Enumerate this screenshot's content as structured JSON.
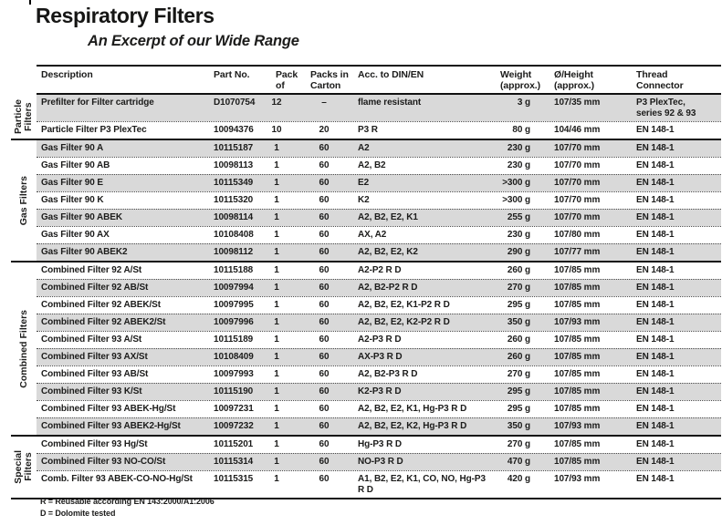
{
  "title": "Respiratory Filters",
  "subtitle": "An Excerpt of our Wide Range",
  "table": {
    "headers": [
      "Description",
      "Part No.",
      "Pack\nof",
      "Packs in\nCarton",
      "Acc. to DIN/EN",
      "Weight\n(approx.)",
      "Ø/Height\n(approx.)",
      "Thread\nConnector"
    ],
    "column_fields": [
      "description",
      "part-no",
      "pack-of",
      "packs-in-carton",
      "din-en",
      "weight",
      "diameter-height",
      "thread-connector"
    ],
    "sections": [
      {
        "group": "Particle\nFilters",
        "rows": [
          [
            "Prefilter for Filter cartridge",
            "D1070754",
            "12",
            "–",
            "flame resistant",
            "3 g",
            "107/35 mm",
            "P3 PlexTec,\nseries 92 & 93"
          ],
          [
            "Particle Filter P3 PlexTec",
            "10094376",
            "10",
            "20",
            "P3 R",
            "80 g",
            "104/46 mm",
            "EN 148-1"
          ]
        ]
      },
      {
        "group": "Gas Filters",
        "rows": [
          [
            "Gas Filter 90 A",
            "10115187",
            "1",
            "60",
            "A2",
            "230 g",
            "107/70 mm",
            "EN 148-1"
          ],
          [
            "Gas Filter 90 AB",
            "10098113",
            "1",
            "60",
            "A2, B2",
            "230 g",
            "107/70 mm",
            "EN 148-1"
          ],
          [
            "Gas Filter 90 E",
            "10115349",
            "1",
            "60",
            "E2",
            ">300 g",
            "107/70 mm",
            "EN 148-1"
          ],
          [
            "Gas Filter 90 K",
            "10115320",
            "1",
            "60",
            "K2",
            ">300 g",
            "107/70 mm",
            "EN 148-1"
          ],
          [
            "Gas Filter 90 ABEK",
            "10098114",
            "1",
            "60",
            "A2, B2, E2, K1",
            "255 g",
            "107/70 mm",
            "EN 148-1"
          ],
          [
            "Gas Filter 90 AX",
            "10108408",
            "1",
            "60",
            "AX, A2",
            "230 g",
            "107/80 mm",
            "EN 148-1"
          ],
          [
            "Gas Filter 90 ABEK2",
            "10098112",
            "1",
            "60",
            "A2, B2, E2, K2",
            "290 g",
            "107/77 mm",
            "EN 148-1"
          ]
        ]
      },
      {
        "group": "Combined Filters",
        "rows": [
          [
            "Combined Filter 92 A/St",
            "10115188",
            "1",
            "60",
            "A2-P2 R D",
            "260 g",
            "107/85 mm",
            "EN 148-1"
          ],
          [
            "Combined Filter 92 AB/St",
            "10097994",
            "1",
            "60",
            "A2, B2-P2 R D",
            "270 g",
            "107/85 mm",
            "EN 148-1"
          ],
          [
            "Combined Filter 92 ABEK/St",
            "10097995",
            "1",
            "60",
            "A2, B2, E2, K1-P2 R D",
            "295 g",
            "107/85 mm",
            "EN 148-1"
          ],
          [
            "Combined Filter 92 ABEK2/St",
            "10097996",
            "1",
            "60",
            "A2, B2, E2, K2-P2 R D",
            "350 g",
            "107/93 mm",
            "EN 148-1"
          ],
          [
            "Combined Filter 93 A/St",
            "10115189",
            "1",
            "60",
            "A2-P3 R D",
            "260 g",
            "107/85 mm",
            "EN 148-1"
          ],
          [
            "Combined Filter 93 AX/St",
            "10108409",
            "1",
            "60",
            "AX-P3 R D",
            "260 g",
            "107/85 mm",
            "EN 148-1"
          ],
          [
            "Combined Filter 93 AB/St",
            "10097993",
            "1",
            "60",
            "A2, B2-P3 R D",
            "270 g",
            "107/85 mm",
            "EN 148-1"
          ],
          [
            "Combined Filter 93 K/St",
            "10115190",
            "1",
            "60",
            "K2-P3 R D",
            "295 g",
            "107/85 mm",
            "EN 148-1"
          ],
          [
            "Combined Filter 93 ABEK-Hg/St",
            "10097231",
            "1",
            "60",
            "A2, B2, E2, K1, Hg-P3 R D",
            "295 g",
            "107/85 mm",
            "EN 148-1"
          ],
          [
            "Combined Filter 93 ABEK2-Hg/St",
            "10097232",
            "1",
            "60",
            "A2, B2, E2, K2, Hg-P3 R D",
            "350 g",
            "107/93 mm",
            "EN 148-1"
          ]
        ]
      },
      {
        "group": "Special\nFilters",
        "rows": [
          [
            "Combined Filter 93 Hg/St",
            "10115201",
            "1",
            "60",
            "Hg-P3 R D",
            "270 g",
            "107/85 mm",
            "EN 148-1"
          ],
          [
            "Combined Filter 93 NO-CO/St",
            "10115314",
            "1",
            "60",
            "NO-P3 R D",
            "470 g",
            "107/85 mm",
            "EN 148-1"
          ],
          [
            "Comb. Filter 93 ABEK-CO-NO-Hg/St",
            "10115315",
            "1",
            "60",
            "A1, B2, E2, K1, CO, NO, Hg-P3 R D",
            "420 g",
            "107/93 mm",
            "EN 148-1"
          ]
        ]
      }
    ]
  },
  "footnotes": [
    "R = Reusable according EN 143:2000/A1:2006",
    "D = Dolomite tested"
  ],
  "colors": {
    "row_shade": "#d9d9d9",
    "text": "#1c1c1b",
    "rule": "#111111"
  }
}
